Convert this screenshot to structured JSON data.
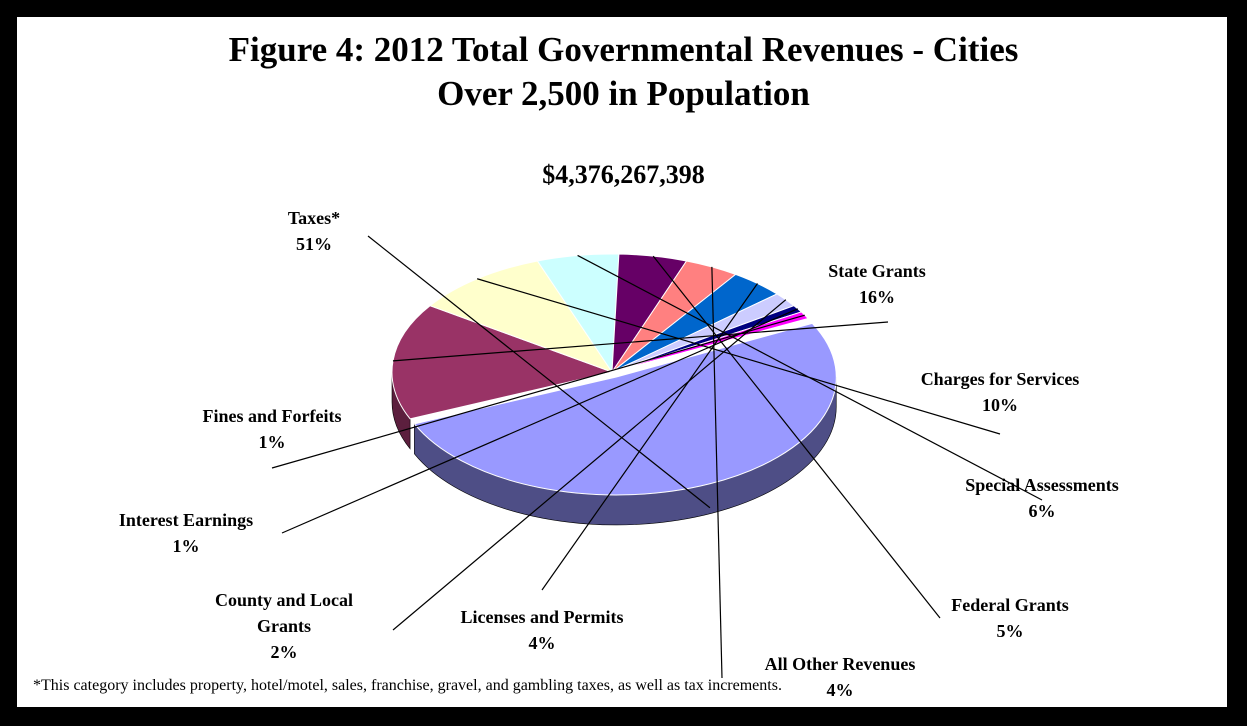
{
  "title_line1": "Figure 4:  2012 Total Governmental Revenues - Cities",
  "title_line2": "Over 2,500 in Population",
  "total": "$4,376,267,398",
  "footnote": "*This category includes property, hotel/motel, sales, franchise, gravel, and gambling taxes, as well as tax increments.",
  "chart_data": {
    "type": "pie",
    "style": "3d-exploded",
    "slices": [
      {
        "label": "Taxes*",
        "percent": 51,
        "value_label": "51%",
        "color": "#9999FF",
        "side_color": "#4E4E86"
      },
      {
        "label": "State Grants",
        "percent": 16,
        "value_label": "16%",
        "color": "#993366",
        "side_color": "#5C1F3E"
      },
      {
        "label": "Charges for Services",
        "percent": 10,
        "value_label": "10%",
        "color": "#FFFFCC",
        "side_color": "#8F8F6A"
      },
      {
        "label": "Special Assessments",
        "percent": 6,
        "value_label": "6%",
        "color": "#CCFFFF",
        "side_color": "#6C8A8A"
      },
      {
        "label": "Federal Grants",
        "percent": 5,
        "value_label": "5%",
        "color": "#660066",
        "side_color": "#3A003A"
      },
      {
        "label": "All Other Revenues",
        "percent": 4,
        "value_label": "4%",
        "color": "#FF8080",
        "side_color": "#8A4545"
      },
      {
        "label": "Licenses and Permits",
        "percent": 4,
        "value_label": "4%",
        "color": "#0066CC",
        "side_color": "#003A72"
      },
      {
        "label": "County and Local Grants",
        "percent": 2,
        "value_label": "2%",
        "color": "#CCCCFF",
        "side_color": "#72728E"
      },
      {
        "label": "Interest Earnings",
        "percent": 1,
        "value_label": "1%",
        "color": "#000080",
        "side_color": "#000048"
      },
      {
        "label": "Fines and Forfeits",
        "percent": 1,
        "value_label": "1%",
        "color": "#FF00FF",
        "side_color": "#8A008A"
      }
    ]
  }
}
